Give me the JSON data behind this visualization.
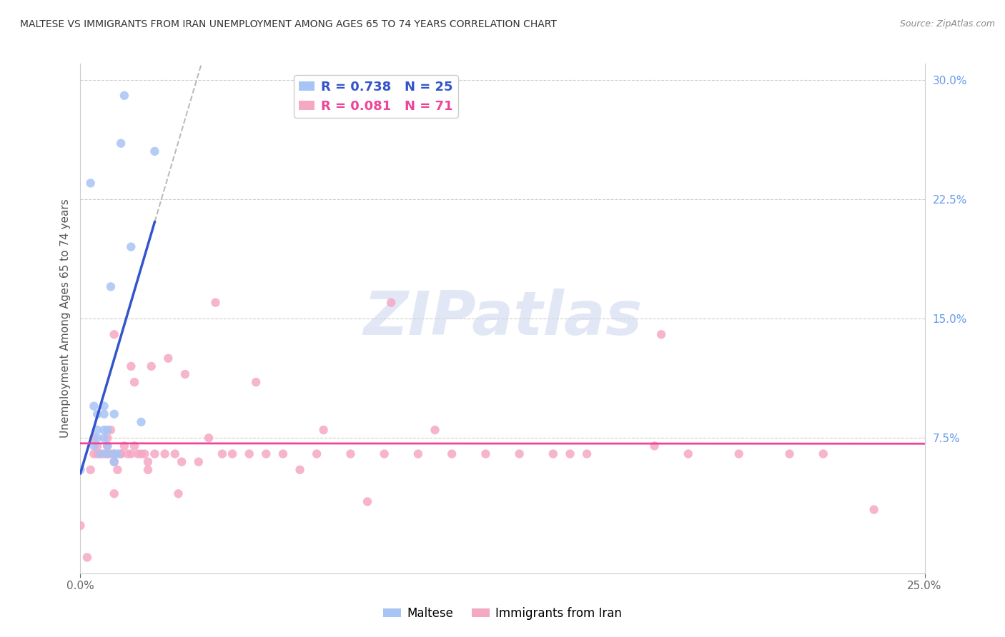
{
  "title": "MALTESE VS IMMIGRANTS FROM IRAN UNEMPLOYMENT AMONG AGES 65 TO 74 YEARS CORRELATION CHART",
  "source": "Source: ZipAtlas.com",
  "ylabel": "Unemployment Among Ages 65 to 74 years",
  "xlim": [
    0.0,
    0.25
  ],
  "ylim": [
    -0.01,
    0.31
  ],
  "plot_ylim": [
    0.0,
    0.3
  ],
  "legend_r1": "R = 0.738",
  "legend_n1": "N = 25",
  "legend_r2": "R = 0.081",
  "legend_n2": "N = 71",
  "maltese_color": "#a8c4f5",
  "iran_color": "#f5a8c4",
  "maltese_line_color": "#3355cc",
  "iran_line_color": "#ee4499",
  "watermark_text": "ZIPatlas",
  "ytick_values": [
    0.075,
    0.15,
    0.225,
    0.3
  ],
  "ytick_labels": [
    "7.5%",
    "15.0%",
    "22.5%",
    "30.0%"
  ],
  "maltese_x": [
    0.0,
    0.003,
    0.004,
    0.004,
    0.005,
    0.005,
    0.005,
    0.006,
    0.007,
    0.007,
    0.007,
    0.007,
    0.008,
    0.008,
    0.008,
    0.009,
    0.01,
    0.01,
    0.01,
    0.011,
    0.012,
    0.013,
    0.015,
    0.018,
    0.022
  ],
  "maltese_y": [
    0.055,
    0.235,
    0.07,
    0.095,
    0.075,
    0.08,
    0.09,
    0.065,
    0.075,
    0.08,
    0.09,
    0.095,
    0.065,
    0.07,
    0.08,
    0.17,
    0.06,
    0.065,
    0.09,
    0.065,
    0.26,
    0.29,
    0.195,
    0.085,
    0.255
  ],
  "iran_x": [
    0.0,
    0.002,
    0.003,
    0.004,
    0.004,
    0.005,
    0.005,
    0.006,
    0.007,
    0.008,
    0.008,
    0.008,
    0.009,
    0.009,
    0.01,
    0.01,
    0.01,
    0.01,
    0.011,
    0.012,
    0.012,
    0.013,
    0.014,
    0.015,
    0.015,
    0.016,
    0.016,
    0.017,
    0.018,
    0.019,
    0.02,
    0.02,
    0.021,
    0.022,
    0.025,
    0.026,
    0.028,
    0.029,
    0.03,
    0.031,
    0.035,
    0.038,
    0.04,
    0.042,
    0.045,
    0.05,
    0.052,
    0.055,
    0.06,
    0.065,
    0.07,
    0.072,
    0.08,
    0.085,
    0.09,
    0.092,
    0.1,
    0.105,
    0.11,
    0.12,
    0.13,
    0.14,
    0.145,
    0.15,
    0.17,
    0.172,
    0.18,
    0.195,
    0.21,
    0.22,
    0.235
  ],
  "iran_y": [
    0.02,
    0.0,
    0.055,
    0.065,
    0.075,
    0.07,
    0.065,
    0.065,
    0.065,
    0.065,
    0.07,
    0.075,
    0.065,
    0.08,
    0.04,
    0.06,
    0.065,
    0.14,
    0.055,
    0.065,
    0.065,
    0.07,
    0.065,
    0.065,
    0.12,
    0.07,
    0.11,
    0.065,
    0.065,
    0.065,
    0.055,
    0.06,
    0.12,
    0.065,
    0.065,
    0.125,
    0.065,
    0.04,
    0.06,
    0.115,
    0.06,
    0.075,
    0.16,
    0.065,
    0.065,
    0.065,
    0.11,
    0.065,
    0.065,
    0.055,
    0.065,
    0.08,
    0.065,
    0.035,
    0.065,
    0.16,
    0.065,
    0.08,
    0.065,
    0.065,
    0.065,
    0.065,
    0.065,
    0.065,
    0.07,
    0.14,
    0.065,
    0.065,
    0.065,
    0.065,
    0.03
  ]
}
